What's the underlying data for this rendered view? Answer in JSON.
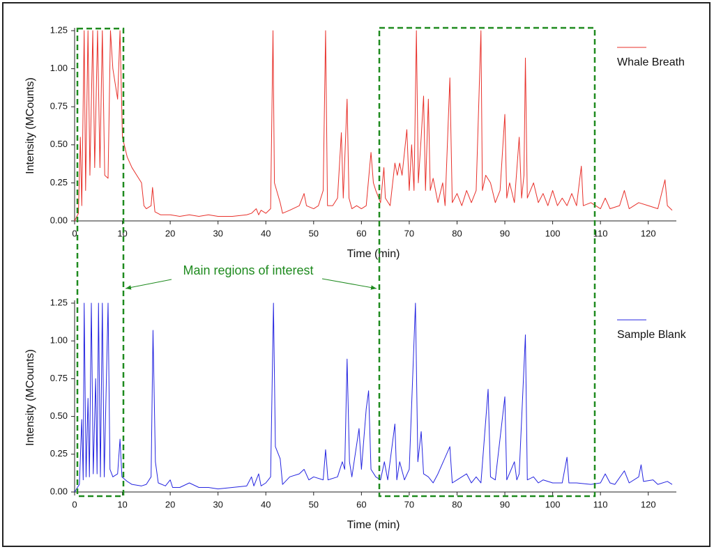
{
  "chart_data": [
    {
      "type": "line",
      "x_label": "Time (min)",
      "y_label": "Intensity (MCounts)",
      "annotation": "Main regions of interest",
      "xlim": [
        0,
        125
      ],
      "ylim": [
        0,
        1.25
      ],
      "xticks": [
        0,
        10,
        20,
        30,
        40,
        50,
        60,
        70,
        80,
        90,
        100,
        110,
        120
      ],
      "yticks": [
        {
          "value": 0,
          "label": "0.00"
        },
        {
          "value": 0.25,
          "label": "0.25"
        },
        {
          "value": 0.5,
          "label": "0.50"
        },
        {
          "value": 0.75,
          "label": "0.75"
        },
        {
          "value": 1,
          "label": "1.00"
        },
        {
          "value": 1.25,
          "label": "1.25"
        }
      ],
      "x": [
        0,
        0.8,
        1.2,
        1.5,
        2,
        2.3,
        2.8,
        3.2,
        3.8,
        4.2,
        4.8,
        5.3,
        5.8,
        6.3,
        7,
        7.5,
        8,
        9,
        9.5,
        10,
        11,
        12,
        13,
        14,
        14.5,
        15,
        16,
        16.3,
        16.8,
        18,
        20,
        22,
        24,
        26,
        28,
        30,
        33,
        36,
        37,
        38,
        38.5,
        39,
        40,
        41,
        41.5,
        41.8,
        43,
        43.5,
        45,
        47,
        48,
        48.5,
        50,
        51,
        52,
        52.5,
        52.9,
        54,
        55,
        55.8,
        56.2,
        57,
        57.4,
        58,
        59,
        60,
        61,
        62,
        62.5,
        63,
        64,
        64.7,
        65,
        66,
        67,
        67.5,
        68,
        68.5,
        69,
        69.5,
        70,
        70.5,
        71,
        71.5,
        71.9,
        72.5,
        73,
        73.4,
        74,
        74.4,
        75,
        76,
        77,
        77.5,
        78.5,
        79,
        80,
        81,
        82,
        83,
        84,
        85,
        85.3,
        86,
        87,
        88,
        89,
        90,
        90.4,
        91,
        92,
        93,
        93.5,
        94,
        94.3,
        94.7,
        96,
        97,
        98,
        99,
        100,
        101,
        102,
        103,
        104,
        105,
        106,
        106.4,
        108,
        110,
        111,
        112,
        114,
        115,
        116,
        118,
        120,
        122,
        123.5,
        124,
        125
      ],
      "series": [
        {
          "name": "Whale Breath",
          "color": "#e8302a",
          "values": [
            0,
            0.05,
            0.55,
            0.1,
            1.25,
            0.2,
            1.25,
            0.3,
            1.25,
            0.35,
            1.25,
            0.35,
            1.25,
            0.3,
            0.28,
            1.25,
            1.0,
            0.8,
            1.25,
            0.55,
            0.42,
            0.35,
            0.3,
            0.25,
            0.1,
            0.08,
            0.1,
            0.22,
            0.06,
            0.04,
            0.04,
            0.03,
            0.04,
            0.03,
            0.04,
            0.03,
            0.03,
            0.04,
            0.05,
            0.08,
            0.04,
            0.07,
            0.05,
            0.08,
            1.25,
            0.25,
            0.12,
            0.05,
            0.07,
            0.1,
            0.18,
            0.1,
            0.08,
            0.1,
            0.2,
            1.25,
            0.1,
            0.1,
            0.15,
            0.58,
            0.15,
            0.8,
            0.15,
            0.08,
            0.1,
            0.08,
            0.1,
            0.45,
            0.25,
            0.2,
            0.12,
            0.35,
            0.15,
            0.1,
            0.38,
            0.3,
            0.38,
            0.3,
            0.45,
            0.6,
            0.2,
            0.5,
            0.2,
            1.25,
            0.25,
            0.55,
            0.82,
            0.2,
            0.8,
            0.2,
            0.28,
            0.12,
            0.25,
            0.1,
            0.94,
            0.12,
            0.18,
            0.1,
            0.2,
            0.12,
            0.2,
            1.25,
            0.2,
            0.3,
            0.25,
            0.12,
            0.2,
            0.7,
            0.15,
            0.25,
            0.12,
            0.55,
            0.15,
            0.3,
            1.07,
            0.15,
            0.25,
            0.12,
            0.18,
            0.1,
            0.2,
            0.1,
            0.15,
            0.1,
            0.18,
            0.1,
            0.36,
            0.1,
            0.12,
            0.08,
            0.15,
            0.08,
            0.1,
            0.2,
            0.08,
            0.12,
            0.1,
            0.08,
            0.27,
            0.1,
            0.07
          ]
        }
      ]
    },
    {
      "type": "line",
      "x_label": "Time (min)",
      "y_label": "Intensity (MCounts)",
      "xlim": [
        0,
        125
      ],
      "ylim": [
        0,
        1.25
      ],
      "xticks": [
        0,
        10,
        20,
        30,
        40,
        50,
        60,
        70,
        80,
        90,
        100,
        110,
        120
      ],
      "yticks": [
        {
          "value": 0,
          "label": "0.00"
        },
        {
          "value": 0.25,
          "label": "0.25"
        },
        {
          "value": 0.5,
          "label": "0.50"
        },
        {
          "value": 0.75,
          "label": "0.75"
        },
        {
          "value": 1,
          "label": "1.00"
        },
        {
          "value": 1.25,
          "label": "1.25"
        }
      ],
      "x": [
        0,
        1,
        1.5,
        1.8,
        2,
        2.4,
        2.8,
        3.1,
        3.5,
        3.9,
        4.4,
        4.7,
        5,
        5.4,
        5.8,
        6.2,
        7,
        7.4,
        8,
        9,
        9.5,
        9.9,
        11,
        12,
        14,
        15,
        16,
        16.4,
        16.9,
        17.5,
        19,
        20,
        20.5,
        22,
        24,
        26,
        28,
        30,
        33,
        36,
        37,
        37.5,
        38.5,
        39,
        40,
        41,
        41.6,
        42,
        43,
        43.5,
        45,
        47,
        48,
        49,
        50,
        52,
        52.5,
        53,
        55,
        56,
        56.5,
        57,
        57.5,
        58,
        59.5,
        60,
        61,
        61.5,
        62,
        63,
        64,
        64.8,
        65.5,
        67,
        67.4,
        68,
        69,
        70,
        71.3,
        71.8,
        72.5,
        73,
        74,
        75,
        76,
        78.5,
        79,
        80,
        82,
        83,
        84,
        85,
        86.5,
        87,
        88,
        90,
        90.4,
        92,
        92.5,
        93,
        94.3,
        94.7,
        96,
        97,
        98,
        100,
        102,
        103,
        103.4,
        105,
        108,
        110,
        111,
        112,
        113,
        115,
        116,
        118,
        118.5,
        119,
        121,
        122,
        124,
        125
      ],
      "series": [
        {
          "name": "Sample Blank",
          "color": "#2424e0",
          "values": [
            0,
            0.05,
            0.48,
            0.08,
            1.25,
            0.1,
            0.62,
            0.1,
            1.25,
            0.12,
            0.75,
            0.12,
            1.25,
            0.1,
            1.25,
            0.1,
            1.25,
            0.15,
            0.1,
            0.12,
            0.35,
            0.1,
            0.07,
            0.05,
            0.04,
            0.05,
            0.1,
            1.07,
            0.2,
            0.06,
            0.04,
            0.08,
            0.03,
            0.03,
            0.06,
            0.03,
            0.03,
            0.02,
            0.03,
            0.04,
            0.1,
            0.04,
            0.12,
            0.04,
            0.06,
            0.1,
            1.25,
            0.3,
            0.22,
            0.05,
            0.1,
            0.12,
            0.15,
            0.08,
            0.1,
            0.08,
            0.28,
            0.08,
            0.1,
            0.2,
            0.15,
            0.88,
            0.2,
            0.1,
            0.42,
            0.15,
            0.55,
            0.67,
            0.15,
            0.1,
            0.08,
            0.2,
            0.08,
            0.45,
            0.08,
            0.2,
            0.08,
            0.15,
            1.25,
            0.2,
            0.4,
            0.12,
            0.1,
            0.06,
            0.12,
            0.3,
            0.06,
            0.08,
            0.12,
            0.06,
            0.1,
            0.06,
            0.68,
            0.1,
            0.08,
            0.63,
            0.08,
            0.2,
            0.08,
            0.12,
            1.04,
            0.08,
            0.1,
            0.06,
            0.08,
            0.06,
            0.06,
            0.23,
            0.06,
            0.06,
            0.05,
            0.06,
            0.12,
            0.06,
            0.05,
            0.14,
            0.06,
            0.1,
            0.18,
            0.07,
            0.08,
            0.05,
            0.07,
            0.05
          ]
        }
      ]
    }
  ]
}
